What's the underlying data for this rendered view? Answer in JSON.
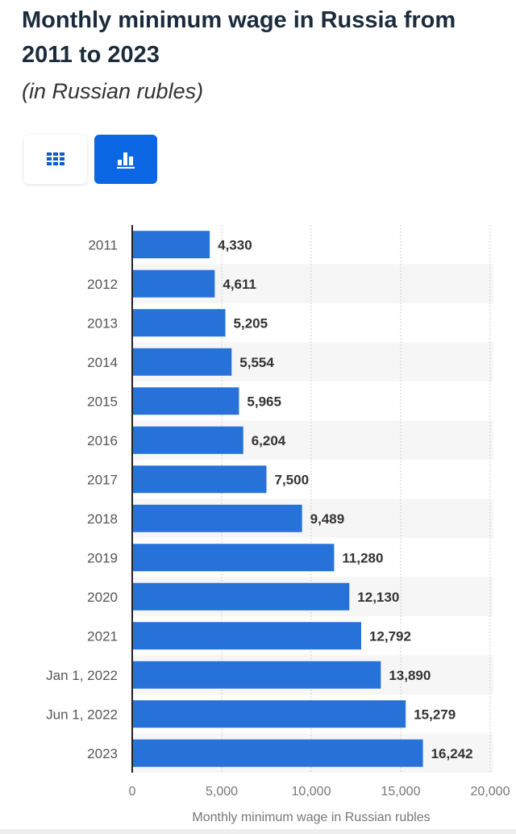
{
  "header": {
    "title": "Monthly minimum wage in Russia from 2011 to 2023",
    "subtitle": "(in Russian rubles)"
  },
  "view_toggle": {
    "table_icon": "grid-table-icon",
    "chart_icon": "bar-chart-icon",
    "active": "chart",
    "accent": "#0b66e4"
  },
  "chart_data": {
    "type": "bar",
    "orientation": "horizontal",
    "categories": [
      "2011",
      "2012",
      "2013",
      "2014",
      "2015",
      "2016",
      "2017",
      "2018",
      "2019",
      "2020",
      "2021",
      "Jan 1, 2022",
      "Jun 1, 2022",
      "2023"
    ],
    "values": [
      4330,
      4611,
      5205,
      5554,
      5965,
      6204,
      7500,
      9489,
      11280,
      12130,
      12792,
      13890,
      15279,
      16242
    ],
    "value_labels": [
      "4,330",
      "4,611",
      "5,205",
      "5,554",
      "5,965",
      "6,204",
      "7,500",
      "9,489",
      "11,280",
      "12,130",
      "12,792",
      "13,890",
      "15,279",
      "16,242"
    ],
    "xlabel": "Monthly minimum wage in Russian rubles",
    "ylabel": "",
    "xlim": [
      0,
      20000
    ],
    "xticks": [
      0,
      5000,
      10000,
      15000,
      20000
    ],
    "xtick_labels": [
      "0",
      "5,000",
      "10,000",
      "15,000",
      "20,000"
    ],
    "grid": true,
    "bar_color": "#2672d9"
  }
}
